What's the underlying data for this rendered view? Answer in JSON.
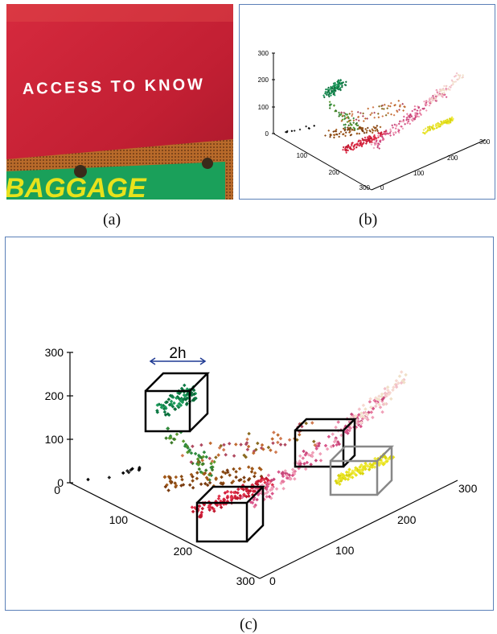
{
  "photo": {
    "sign_text": "ACCESS TO KNOW",
    "banner_text": "BAGGAGE",
    "colors": {
      "red": "#c21f33",
      "orange_strip": "#b86a2a",
      "green": "#1aa05a",
      "yellow_text": "#e8e21c"
    }
  },
  "captions": {
    "a": "(a)",
    "b": "(b)",
    "c": "(c)"
  },
  "plot_b": {
    "z_ticks": [
      "300",
      "200",
      "100",
      "0"
    ],
    "left_ticks": [
      "100",
      "200",
      "300"
    ],
    "right_ticks": [
      "0",
      "100",
      "200",
      "300"
    ]
  },
  "plot_c": {
    "z_ticks": [
      "300",
      "200",
      "100",
      "0"
    ],
    "left_ticks": [
      "0",
      "100",
      "200",
      "300"
    ],
    "right_ticks": [
      "0",
      "100",
      "200",
      "300"
    ],
    "bandwidth_label": "2h"
  },
  "chart_data": [
    {
      "type": "scatter",
      "panel": "b",
      "description_axes": "3D RGB color space scatter of image (a) pixels",
      "axis_ranges": {
        "x": [
          0,
          300
        ],
        "y": [
          0,
          300
        ],
        "z": [
          0,
          300
        ]
      },
      "clusters": [
        "black",
        "green",
        "brown",
        "red",
        "pink",
        "yellow"
      ]
    },
    {
      "type": "scatter",
      "panel": "c",
      "axis_ranges": {
        "x": [
          0,
          300
        ],
        "y": [
          0,
          300
        ],
        "z": [
          0,
          300
        ]
      },
      "clusters": [
        "black",
        "green",
        "brown",
        "red",
        "pink",
        "yellow"
      ],
      "windows": [
        {
          "cluster": "green",
          "edge": "black"
        },
        {
          "cluster": "red",
          "edge": "black"
        },
        {
          "cluster": "pink",
          "edge": "black"
        },
        {
          "cluster": "yellow",
          "edge": "gray"
        }
      ]
    }
  ]
}
